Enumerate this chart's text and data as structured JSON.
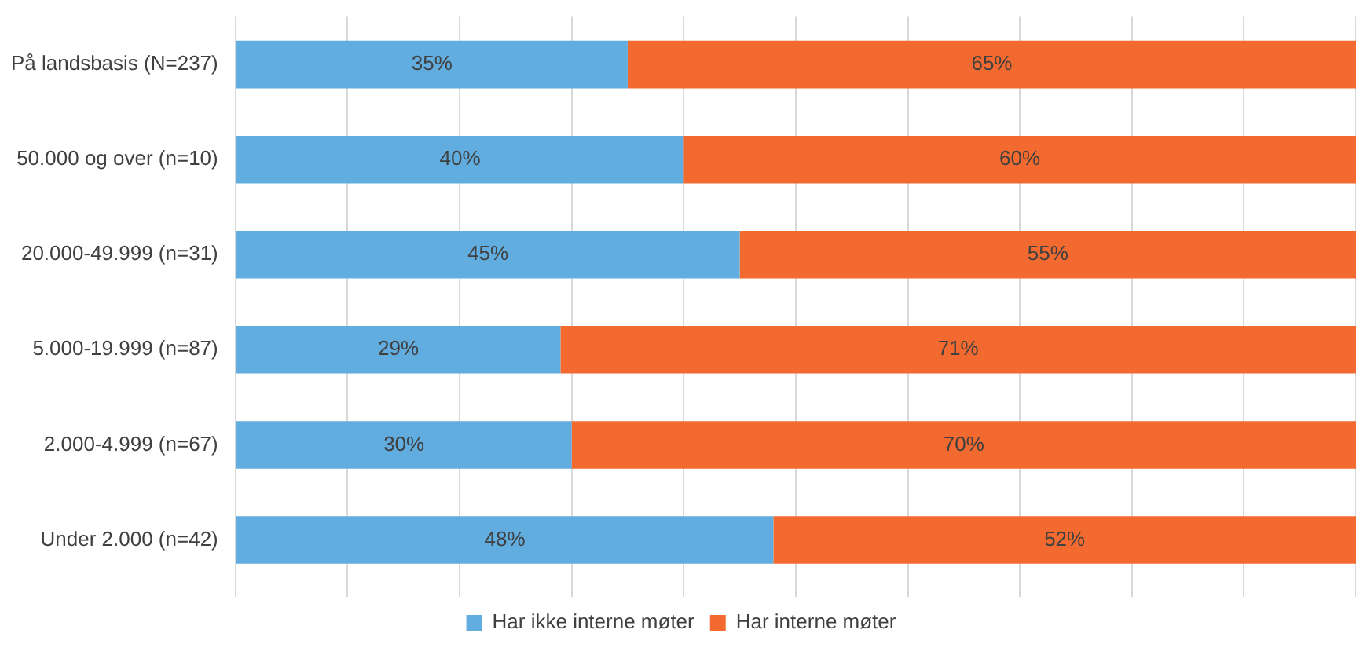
{
  "chart_data": {
    "type": "bar",
    "orientation": "horizontal",
    "stacked": true,
    "categories": [
      "På landsbasis (N=237)",
      "50.000 og over (n=10)",
      "20.000-49.999 (n=31)",
      "5.000-19.999 (n=87)",
      "2.000-4.999 (n=67)",
      "Under 2.000 (n=42)"
    ],
    "series": [
      {
        "name": "Har ikke interne møter",
        "color": "#62addf",
        "values": [
          35,
          40,
          45,
          29,
          30,
          48
        ],
        "value_labels": [
          "35%",
          "40%",
          "45%",
          "29%",
          "30%",
          "48%"
        ]
      },
      {
        "name": "Har interne møter",
        "color": "#f26a2f",
        "values": [
          65,
          60,
          55,
          71,
          70,
          52
        ],
        "value_labels": [
          "65%",
          "60%",
          "55%",
          "71%",
          "70%",
          "52%"
        ]
      }
    ],
    "xlim": [
      0,
      100
    ],
    "xticks": [
      {
        "value": 0,
        "label": null
      },
      {
        "value": 10,
        "label": null
      },
      {
        "value": 20,
        "label": null
      },
      {
        "value": 30,
        "label": null
      },
      {
        "value": 40,
        "label": null
      },
      {
        "value": 50,
        "label": null
      },
      {
        "value": 60,
        "label": null
      },
      {
        "value": 70,
        "label": null
      },
      {
        "value": 80,
        "label": null
      },
      {
        "value": 90,
        "label": null
      },
      {
        "value": 100,
        "label": null
      }
    ],
    "grid": "x",
    "legend": "bottom",
    "tick_labels": "y"
  }
}
